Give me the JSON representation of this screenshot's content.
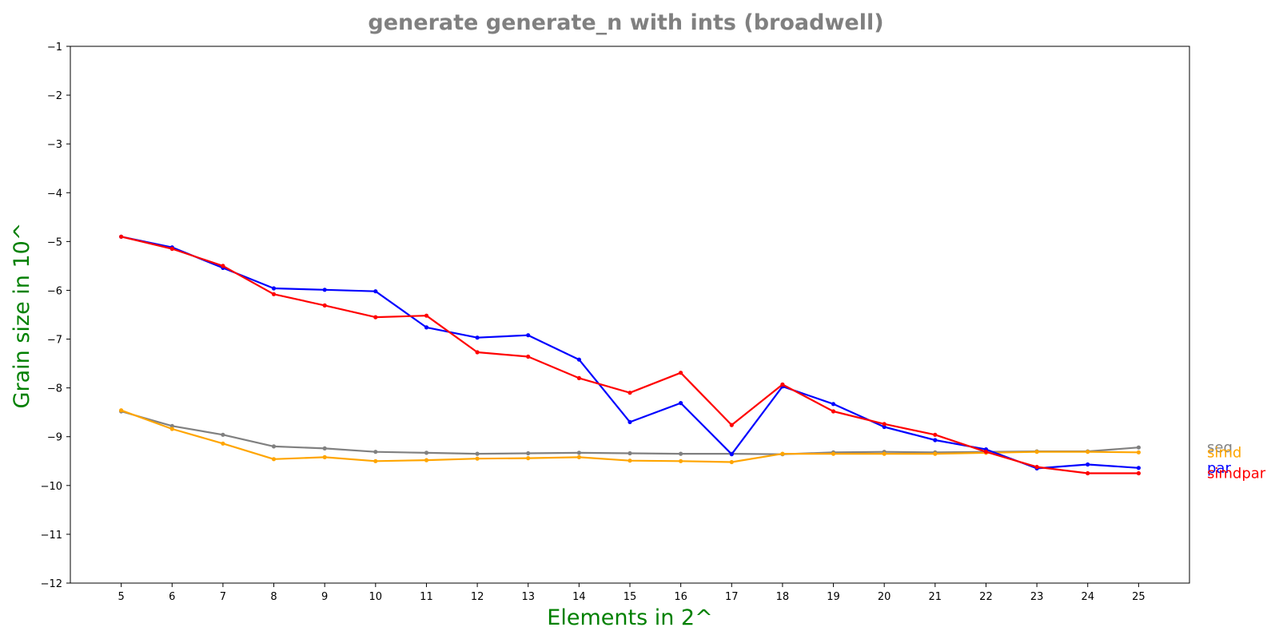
{
  "chart_data": {
    "type": "line",
    "title": "generate generate_n with ints  (broadwell)",
    "xlabel": "Elements in 2^",
    "ylabel": "Grain size in 10^",
    "x": [
      5,
      6,
      7,
      8,
      9,
      10,
      11,
      12,
      13,
      14,
      15,
      16,
      17,
      18,
      19,
      20,
      21,
      22,
      23,
      24,
      25
    ],
    "xlim": [
      4,
      26
    ],
    "ylim": [
      -12,
      -1
    ],
    "xticks": [
      "5",
      "6",
      "7",
      "8",
      "9",
      "10",
      "11",
      "12",
      "13",
      "14",
      "15",
      "16",
      "17",
      "18",
      "19",
      "20",
      "21",
      "22",
      "23",
      "24",
      "25"
    ],
    "yticks": [
      "−12",
      "−11",
      "−10",
      "−9",
      "−8",
      "−7",
      "−6",
      "−5",
      "−4",
      "−3",
      "−2",
      "−1"
    ],
    "ytick_values": [
      -12,
      -11,
      -10,
      -9,
      -8,
      -7,
      -6,
      -5,
      -4,
      -3,
      -2,
      -1
    ],
    "grid": false,
    "legend_placement": "right, outside plot",
    "series": [
      {
        "name": "seq",
        "color": "#808080",
        "values": [
          -8.48,
          -8.78,
          -8.96,
          -9.2,
          -9.24,
          -9.31,
          -9.33,
          -9.35,
          -9.34,
          -9.33,
          -9.34,
          -9.35,
          -9.35,
          -9.36,
          -9.32,
          -9.31,
          -9.32,
          -9.31,
          -9.3,
          -9.3,
          -9.22
        ]
      },
      {
        "name": "simd",
        "color": "#FFA500",
        "values": [
          -8.46,
          -8.84,
          -9.14,
          -9.46,
          -9.42,
          -9.5,
          -9.48,
          -9.45,
          -9.44,
          -9.42,
          -9.49,
          -9.5,
          -9.52,
          -9.35,
          -9.35,
          -9.35,
          -9.35,
          -9.33,
          -9.31,
          -9.31,
          -9.32
        ]
      },
      {
        "name": "par",
        "color": "#0000FF",
        "values": [
          -4.9,
          -5.12,
          -5.54,
          -5.96,
          -5.99,
          -6.02,
          -6.76,
          -6.97,
          -6.92,
          -7.42,
          -8.7,
          -8.31,
          -9.36,
          -7.97,
          -8.33,
          -8.8,
          -9.07,
          -9.26,
          -9.65,
          -9.57,
          -9.64
        ]
      },
      {
        "name": "simdpar",
        "color": "#FF0000",
        "values": [
          -4.9,
          -5.15,
          -5.5,
          -6.08,
          -6.31,
          -6.55,
          -6.52,
          -7.27,
          -7.36,
          -7.8,
          -8.1,
          -7.69,
          -8.76,
          -7.93,
          -8.48,
          -8.74,
          -8.96,
          -9.31,
          -9.62,
          -9.75,
          -9.75
        ]
      }
    ]
  }
}
